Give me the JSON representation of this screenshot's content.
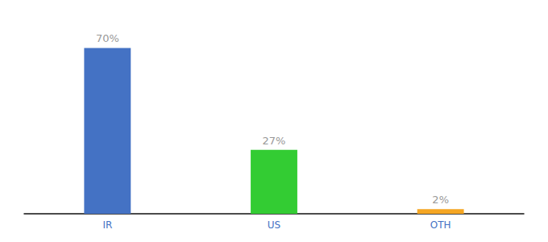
{
  "chart_data": {
    "type": "bar",
    "categories": [
      "IR",
      "US",
      "OTH"
    ],
    "values": [
      70,
      27,
      2
    ],
    "value_labels": [
      "70%",
      "27%",
      "2%"
    ],
    "data_labels": true,
    "colors": [
      "#4472c4",
      "#33cc33",
      "#f5a623"
    ],
    "ylim": [
      0,
      80
    ],
    "grid": false,
    "tick_labels": "x"
  }
}
